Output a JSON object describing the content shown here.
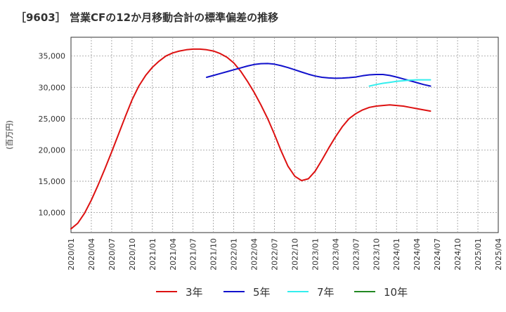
{
  "chart_data": {
    "type": "line",
    "title": "［9603］ 営業CFの12か月移動合計の標準偏差の推移",
    "ylabel": "(百万円)",
    "xlabel": "",
    "ylim": [
      6800,
      38000
    ],
    "x_range": [
      "2020/01",
      "2025/04"
    ],
    "grid": true,
    "legend_position": "bottom",
    "y_ticks": [
      {
        "value": 10000,
        "label": "10,000"
      },
      {
        "value": 15000,
        "label": "15,000"
      },
      {
        "value": 20000,
        "label": "20,000"
      },
      {
        "value": 25000,
        "label": "25,000"
      },
      {
        "value": 30000,
        "label": "30,000"
      },
      {
        "value": 35000,
        "label": "35,000"
      }
    ],
    "x_ticks": [
      "2020/01",
      "2020/04",
      "2020/07",
      "2020/10",
      "2021/01",
      "2021/04",
      "2021/07",
      "2021/10",
      "2022/01",
      "2022/04",
      "2022/07",
      "2022/10",
      "2023/01",
      "2023/04",
      "2023/07",
      "2023/10",
      "2024/01",
      "2024/04",
      "2024/07",
      "2024/10",
      "2025/01",
      "2025/04"
    ],
    "series": [
      {
        "name": "3年",
        "color": "#dd1111",
        "points": [
          [
            "2020/01",
            7400
          ],
          [
            "2020/02",
            8300
          ],
          [
            "2020/03",
            9900
          ],
          [
            "2020/04",
            12000
          ],
          [
            "2020/05",
            14400
          ],
          [
            "2020/06",
            17000
          ],
          [
            "2020/07",
            19700
          ],
          [
            "2020/08",
            22500
          ],
          [
            "2020/09",
            25300
          ],
          [
            "2020/10",
            28000
          ],
          [
            "2020/11",
            30200
          ],
          [
            "2020/12",
            31900
          ],
          [
            "2021/01",
            33200
          ],
          [
            "2021/02",
            34200
          ],
          [
            "2021/03",
            35000
          ],
          [
            "2021/04",
            35500
          ],
          [
            "2021/05",
            35800
          ],
          [
            "2021/06",
            36000
          ],
          [
            "2021/07",
            36100
          ],
          [
            "2021/08",
            36100
          ],
          [
            "2021/09",
            36000
          ],
          [
            "2021/10",
            35800
          ],
          [
            "2021/11",
            35400
          ],
          [
            "2021/12",
            34800
          ],
          [
            "2022/01",
            33900
          ],
          [
            "2022/02",
            32600
          ],
          [
            "2022/03",
            31000
          ],
          [
            "2022/04",
            29200
          ],
          [
            "2022/05",
            27200
          ],
          [
            "2022/06",
            25000
          ],
          [
            "2022/07",
            22500
          ],
          [
            "2022/08",
            19800
          ],
          [
            "2022/09",
            17400
          ],
          [
            "2022/10",
            15800
          ],
          [
            "2022/11",
            15100
          ],
          [
            "2022/12",
            15400
          ],
          [
            "2023/01",
            16600
          ],
          [
            "2023/02",
            18400
          ],
          [
            "2023/03",
            20300
          ],
          [
            "2023/04",
            22100
          ],
          [
            "2023/05",
            23700
          ],
          [
            "2023/06",
            25000
          ],
          [
            "2023/07",
            25800
          ],
          [
            "2023/08",
            26400
          ],
          [
            "2023/09",
            26800
          ],
          [
            "2023/10",
            27000
          ],
          [
            "2023/11",
            27100
          ],
          [
            "2023/12",
            27200
          ],
          [
            "2024/01",
            27100
          ],
          [
            "2024/02",
            27000
          ],
          [
            "2024/03",
            26800
          ],
          [
            "2024/04",
            26600
          ],
          [
            "2024/05",
            26400
          ],
          [
            "2024/06",
            26200
          ]
        ]
      },
      {
        "name": "5年",
        "color": "#1111cc",
        "points": [
          [
            "2021/09",
            31600
          ],
          [
            "2021/10",
            31900
          ],
          [
            "2021/11",
            32200
          ],
          [
            "2021/12",
            32500
          ],
          [
            "2022/01",
            32800
          ],
          [
            "2022/02",
            33100
          ],
          [
            "2022/03",
            33400
          ],
          [
            "2022/04",
            33650
          ],
          [
            "2022/05",
            33780
          ],
          [
            "2022/06",
            33800
          ],
          [
            "2022/07",
            33700
          ],
          [
            "2022/08",
            33450
          ],
          [
            "2022/09",
            33150
          ],
          [
            "2022/10",
            32800
          ],
          [
            "2022/11",
            32450
          ],
          [
            "2022/12",
            32100
          ],
          [
            "2023/01",
            31800
          ],
          [
            "2023/02",
            31600
          ],
          [
            "2023/03",
            31500
          ],
          [
            "2023/04",
            31450
          ],
          [
            "2023/05",
            31480
          ],
          [
            "2023/06",
            31550
          ],
          [
            "2023/07",
            31650
          ],
          [
            "2023/08",
            31850
          ],
          [
            "2023/09",
            32000
          ],
          [
            "2023/10",
            32050
          ],
          [
            "2023/11",
            32050
          ],
          [
            "2023/12",
            31900
          ],
          [
            "2024/01",
            31650
          ],
          [
            "2024/02",
            31350
          ],
          [
            "2024/03",
            31050
          ],
          [
            "2024/04",
            30750
          ],
          [
            "2024/05",
            30450
          ],
          [
            "2024/06",
            30200
          ]
        ]
      },
      {
        "name": "7年",
        "color": "#33eeee",
        "points": [
          [
            "2023/09",
            30200
          ],
          [
            "2023/10",
            30450
          ],
          [
            "2023/11",
            30650
          ],
          [
            "2023/12",
            30800
          ],
          [
            "2024/01",
            30950
          ],
          [
            "2024/02",
            31050
          ],
          [
            "2024/03",
            31150
          ],
          [
            "2024/04",
            31200
          ],
          [
            "2024/05",
            31200
          ],
          [
            "2024/06",
            31200
          ]
        ]
      },
      {
        "name": "10年",
        "color": "#228822",
        "points": []
      }
    ]
  }
}
